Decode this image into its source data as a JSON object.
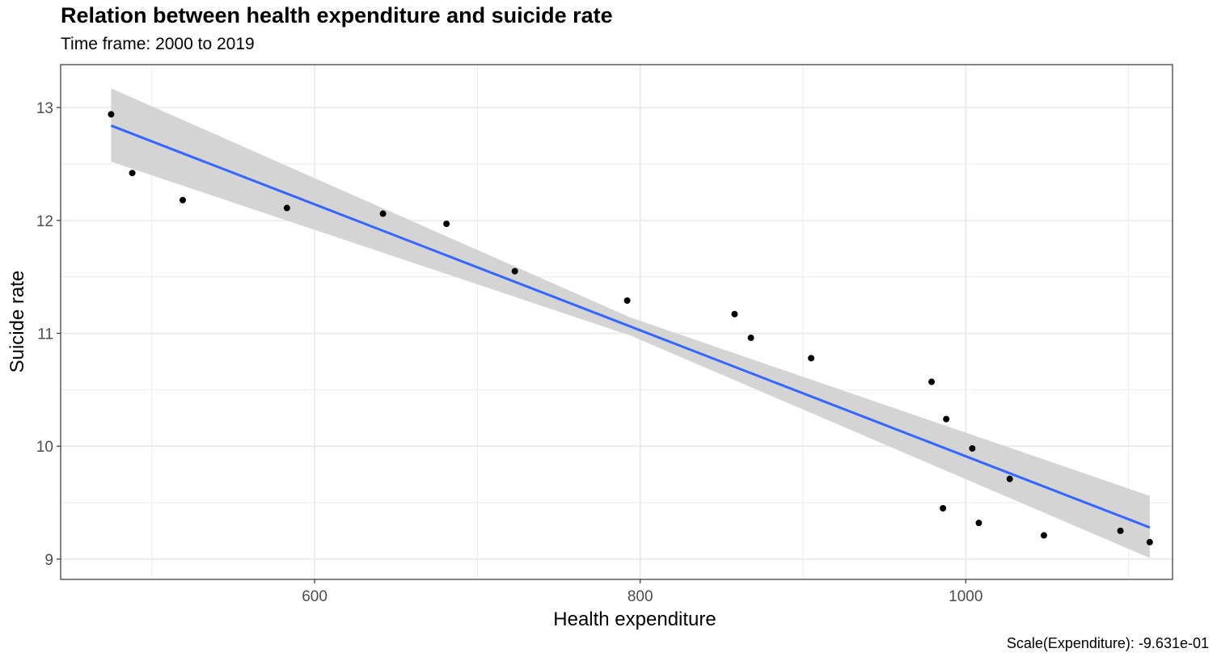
{
  "chart_data": {
    "type": "scatter",
    "title": "Relation between health expenditure and suicide rate",
    "subtitle": "Time frame: 2000 to 2019",
    "caption": "Scale(Expenditure): -9.631e-01",
    "xlabel": "Health expenditure",
    "ylabel": "Suicide rate",
    "xlim": [
      444,
      1127
    ],
    "ylim": [
      8.82,
      13.38
    ],
    "x_ticks": [
      600,
      800,
      1000
    ],
    "x_minor_ticks": [
      500,
      700,
      900,
      1100
    ],
    "y_ticks": [
      9,
      10,
      11,
      12,
      13
    ],
    "y_minor_ticks": [
      9.5,
      10.5,
      11.5,
      12.5
    ],
    "grid": true,
    "points": [
      {
        "x": 475,
        "y": 12.94
      },
      {
        "x": 488,
        "y": 12.42
      },
      {
        "x": 519,
        "y": 12.18
      },
      {
        "x": 583,
        "y": 12.11
      },
      {
        "x": 642,
        "y": 12.06
      },
      {
        "x": 681,
        "y": 11.97
      },
      {
        "x": 723,
        "y": 11.55
      },
      {
        "x": 792,
        "y": 11.29
      },
      {
        "x": 858,
        "y": 11.17
      },
      {
        "x": 868,
        "y": 10.96
      },
      {
        "x": 905,
        "y": 10.78
      },
      {
        "x": 979,
        "y": 10.57
      },
      {
        "x": 988,
        "y": 10.24
      },
      {
        "x": 986,
        "y": 9.45
      },
      {
        "x": 1004,
        "y": 9.98
      },
      {
        "x": 1008,
        "y": 9.32
      },
      {
        "x": 1027,
        "y": 9.71
      },
      {
        "x": 1048,
        "y": 9.21
      },
      {
        "x": 1095,
        "y": 9.25
      },
      {
        "x": 1113,
        "y": 9.15
      }
    ],
    "fit": {
      "method": "linear",
      "x": [
        475,
        1113
      ],
      "y": [
        12.84,
        9.28
      ],
      "ci_upper": [
        13.17,
        9.56
      ],
      "ci_lower": [
        12.52,
        9.01
      ],
      "ci_mid_x": 794,
      "ci_mid_upper": 11.14,
      "ci_mid_lower": 10.98,
      "line_color": "#3366ff",
      "band_color": "#d4d4d4"
    },
    "point_color": "#000000"
  }
}
